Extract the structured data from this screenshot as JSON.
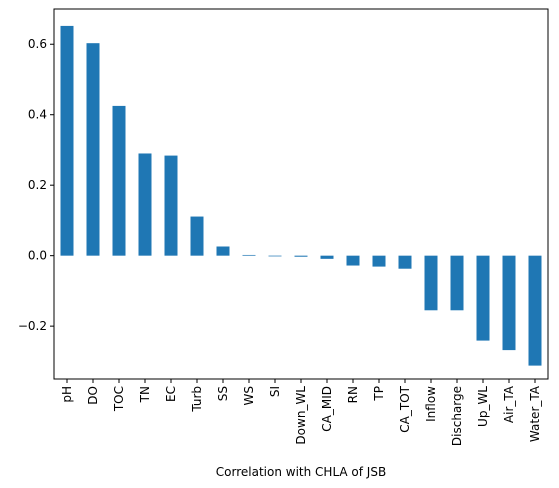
{
  "chart_data": {
    "type": "bar",
    "title": "",
    "xlabel": "Correlation with CHLA of JSB",
    "ylabel": "",
    "categories": [
      "pH",
      "DO",
      "TOC",
      "TN",
      "EC",
      "Turb",
      "SS",
      "WS",
      "SI",
      "Down_WL",
      "CA_MID",
      "RN",
      "TP",
      "CA_TOT",
      "Inflow",
      "Discharge",
      "Up_WL",
      "Air_TA",
      "Water_TA"
    ],
    "values": [
      0.652,
      0.603,
      0.425,
      0.29,
      0.284,
      0.111,
      0.026,
      0.002,
      -0.002,
      -0.003,
      -0.009,
      -0.028,
      -0.031,
      -0.037,
      -0.155,
      -0.155,
      -0.241,
      -0.268,
      -0.312
    ],
    "ylim": [
      -0.35,
      0.7
    ],
    "yticks": [
      -0.2,
      0.0,
      0.2,
      0.4,
      0.6
    ],
    "ytick_labels": [
      "−0.2",
      "0.0",
      "0.2",
      "0.4",
      "0.6"
    ],
    "grid": false,
    "legend": "none",
    "bar_color": "#1f77b4"
  }
}
